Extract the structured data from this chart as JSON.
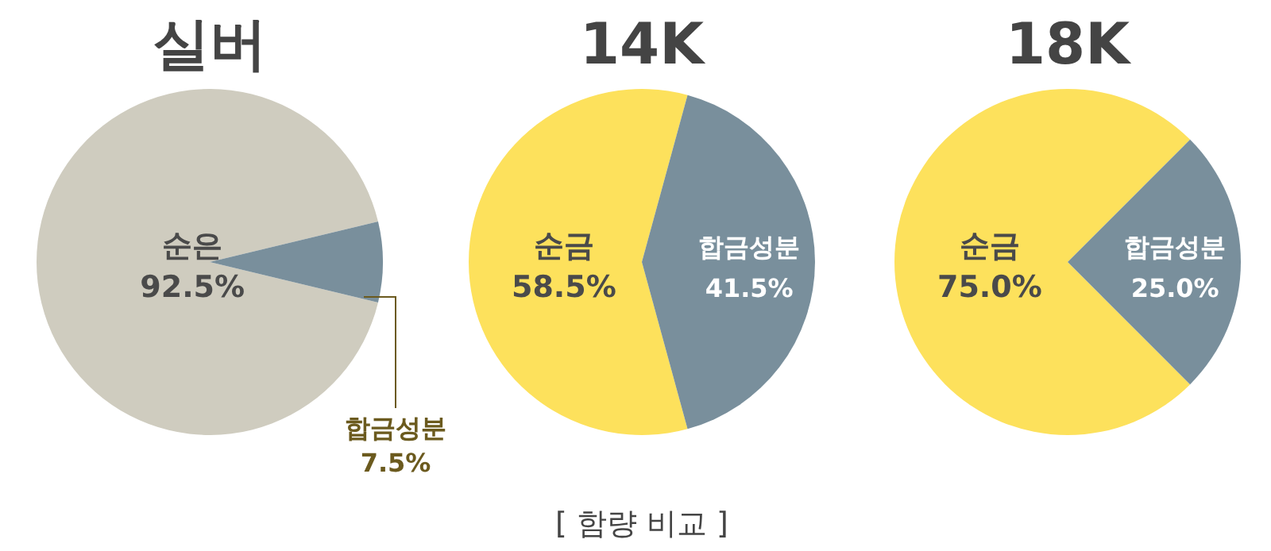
{
  "chart_data": [
    {
      "type": "pie",
      "title": "실버",
      "categories": [
        "순은",
        "합금성분"
      ],
      "values": [
        92.5,
        7.5
      ],
      "colors": [
        "#cfccbf",
        "#798f9c"
      ],
      "value_labels": [
        "92.5%",
        "7.5%"
      ]
    },
    {
      "type": "pie",
      "title": "14K",
      "categories": [
        "순금",
        "합금성분"
      ],
      "values": [
        58.5,
        41.5
      ],
      "colors": [
        "#fde15c",
        "#798f9c"
      ],
      "value_labels": [
        "58.5%",
        "41.5%"
      ],
      "annotations": [
        "[ 함량 비교 ]"
      ]
    },
    {
      "type": "pie",
      "title": "18K",
      "categories": [
        "순금",
        "합금성분"
      ],
      "values": [
        75.0,
        25.0
      ],
      "colors": [
        "#fde15c",
        "#798f9c"
      ],
      "value_labels": [
        "75.0%",
        "25.0%"
      ]
    }
  ]
}
